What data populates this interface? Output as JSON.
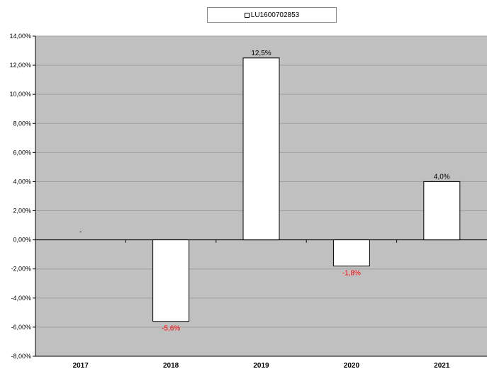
{
  "chart_data": {
    "type": "bar",
    "categories": [
      "2017",
      "2018",
      "2019",
      "2020",
      "2021"
    ],
    "series": [
      {
        "name": "LU1600702853",
        "values": [
          null,
          -5.6,
          12.5,
          -1.8,
          4.0
        ]
      }
    ],
    "data_labels": [
      "-",
      "-5,6%",
      "12,5%",
      "-1,8%",
      "4,0%"
    ],
    "y_ticks": [
      "14,00%",
      "12,00%",
      "10,00%",
      "8,00%",
      "6,00%",
      "4,00%",
      "2,00%",
      "0,00%",
      "-2,00%",
      "-4,00%",
      "-6,00%",
      "-8,00%"
    ],
    "ylim": [
      -8,
      14
    ],
    "ytick_step": 2,
    "grid": true,
    "legend_position": "top-center",
    "colors": {
      "plot_background": "#c0c0c0",
      "bar_fill": "#ffffff",
      "bar_stroke": "#000000",
      "positive_label": "#000000",
      "negative_label": "#ff0000",
      "grid": "#a0a0a0"
    }
  }
}
